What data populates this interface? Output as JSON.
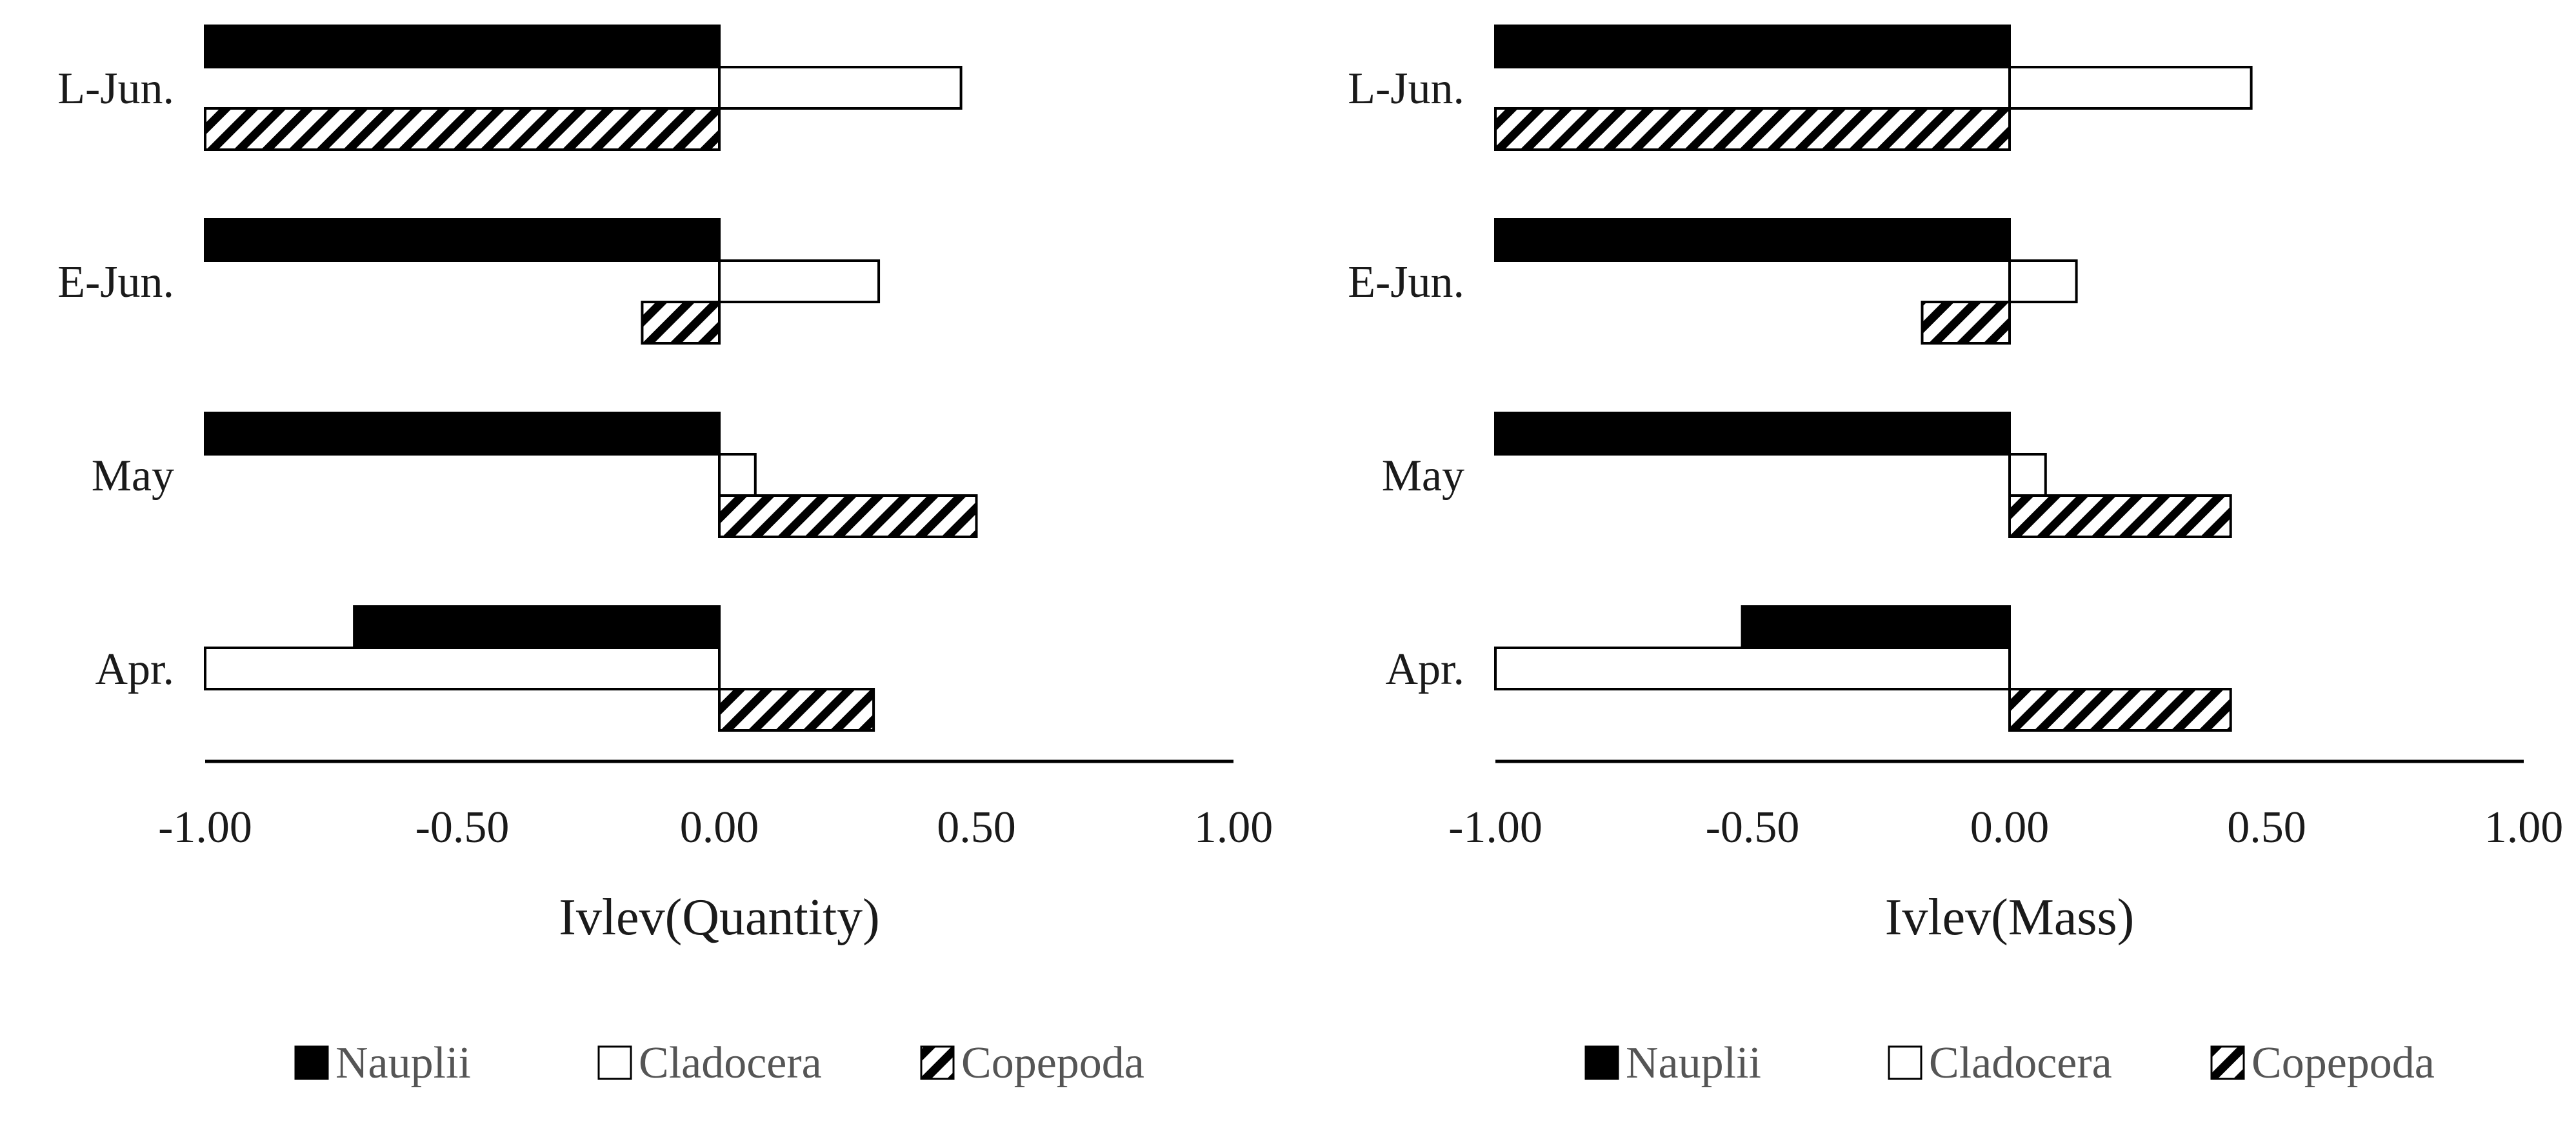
{
  "series_colors": {
    "Nauplii": "#000000",
    "Cladocera": "#ffffff",
    "Copepoda": "hatch"
  },
  "chart_data": [
    {
      "type": "bar",
      "orientation": "horizontal",
      "title": "",
      "xlabel": "Ivlev(Quantity)",
      "ylabel": "",
      "xlim": [
        -1.0,
        1.0
      ],
      "xticks": [
        "-1.00",
        "-0.50",
        "0.00",
        "0.50",
        "1.00"
      ],
      "xtick_values": [
        -1.0,
        -0.5,
        0.0,
        0.5,
        1.0
      ],
      "categories": [
        "L-Jun.",
        "E-Jun.",
        "May",
        "Apr."
      ],
      "series": [
        {
          "name": "Nauplii",
          "values": [
            -1.0,
            -1.0,
            -1.0,
            -0.71
          ]
        },
        {
          "name": "Cladocera",
          "values": [
            0.47,
            0.31,
            0.07,
            -1.0
          ]
        },
        {
          "name": "Copepoda",
          "values": [
            -1.0,
            -0.15,
            0.5,
            0.3
          ]
        }
      ],
      "legend": [
        "Nauplii",
        "Cladocera",
        "Copepoda"
      ],
      "legend_position": "bottom"
    },
    {
      "type": "bar",
      "orientation": "horizontal",
      "title": "",
      "xlabel": "Ivlev(Mass)",
      "ylabel": "",
      "xlim": [
        -1.0,
        1.0
      ],
      "xticks": [
        "-1.00",
        "-0.50",
        "0.00",
        "0.50",
        "1.00"
      ],
      "xtick_values": [
        -1.0,
        -0.5,
        0.0,
        0.5,
        1.0
      ],
      "categories": [
        "L-Jun.",
        "E-Jun.",
        "May",
        "Apr."
      ],
      "series": [
        {
          "name": "Nauplii",
          "values": [
            -1.0,
            -1.0,
            -1.0,
            -0.52
          ]
        },
        {
          "name": "Cladocera",
          "values": [
            0.47,
            0.13,
            0.07,
            -1.0
          ]
        },
        {
          "name": "Copepoda",
          "values": [
            -1.0,
            -0.17,
            0.43,
            0.43
          ]
        }
      ],
      "legend": [
        "Nauplii",
        "Cladocera",
        "Copepoda"
      ],
      "legend_position": "bottom"
    }
  ]
}
